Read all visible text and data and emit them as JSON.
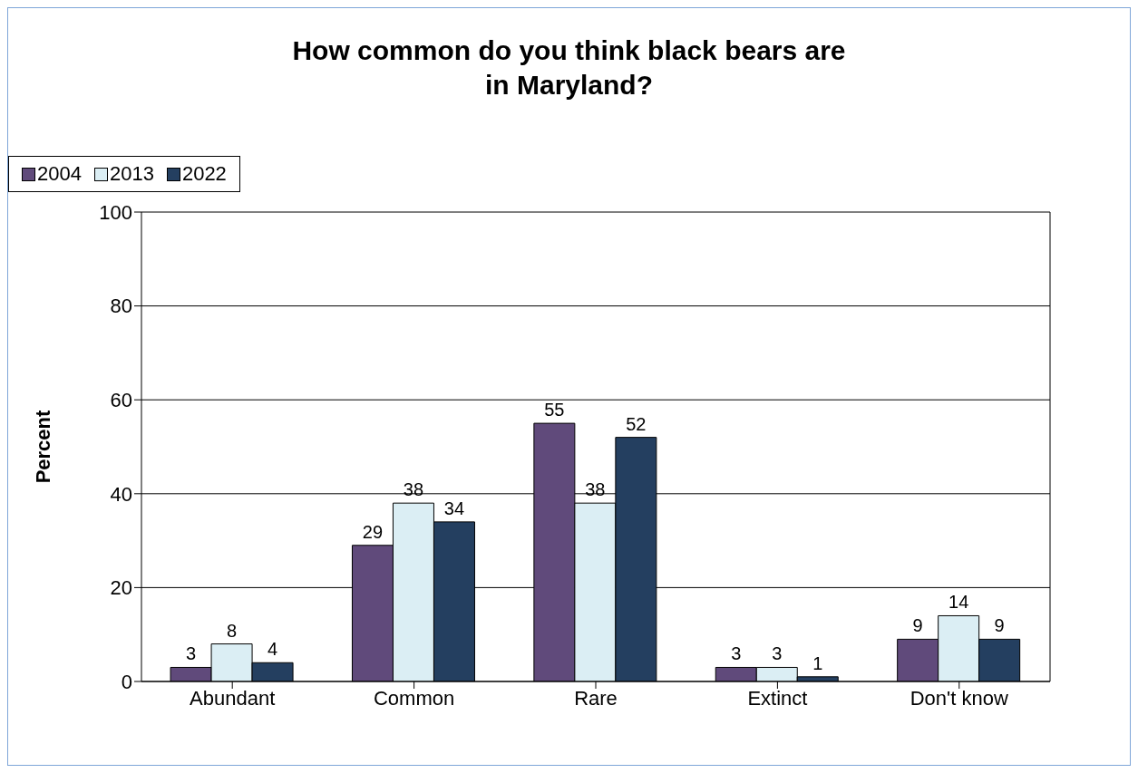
{
  "chart_data": {
    "type": "bar",
    "title": "How common do you think black bears are\nin Maryland?",
    "ylabel": "Percent",
    "categories": [
      "Abundant",
      "Common",
      "Rare",
      "Extinct",
      "Don't know"
    ],
    "series": [
      {
        "name": "2004",
        "color": "#604a7b",
        "values": [
          3,
          29,
          55,
          3,
          9
        ]
      },
      {
        "name": "2013",
        "color": "#dbeef4",
        "values": [
          8,
          38,
          38,
          3,
          14
        ]
      },
      {
        "name": "2022",
        "color": "#243f60",
        "values": [
          4,
          34,
          52,
          1,
          9
        ]
      }
    ],
    "ylim": [
      0,
      100
    ],
    "yticks": [
      0,
      20,
      40,
      60,
      80,
      100
    ],
    "grid": "y",
    "legend": "top",
    "data_labels": true
  }
}
